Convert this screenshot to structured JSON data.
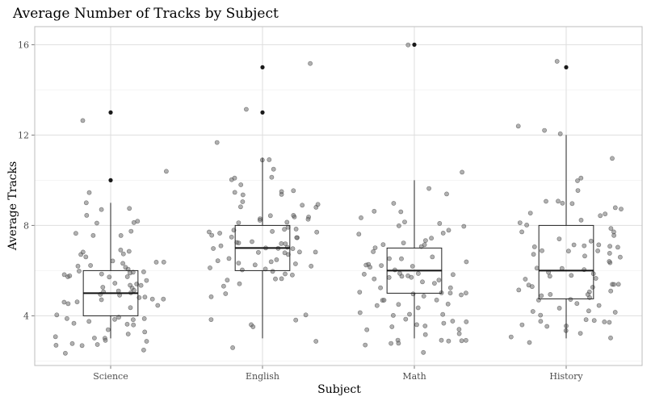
{
  "chart_data": {
    "type": "boxplot",
    "title": "Average Number of Tracks by Subject",
    "xlabel": "Subject",
    "ylabel": "Average Tracks",
    "categories": [
      "Science",
      "English",
      "Math",
      "History"
    ],
    "y_ticks": [
      4,
      8,
      12,
      16
    ],
    "ylim": [
      1.8,
      16.8
    ],
    "grid": true,
    "boxes": [
      {
        "name": "Science",
        "q1": 4,
        "median": 5,
        "q3": 6,
        "whisker_low": 3,
        "whisker_high": 9,
        "outliers": [
          10,
          13
        ]
      },
      {
        "name": "English",
        "q1": 6,
        "median": 7,
        "q3": 8,
        "whisker_low": 3,
        "whisker_high": 11,
        "outliers": [
          13,
          15
        ]
      },
      {
        "name": "Math",
        "q1": 5,
        "median": 6,
        "q3": 7,
        "whisker_low": 3,
        "whisker_high": 10,
        "outliers": [
          16
        ]
      },
      {
        "name": "History",
        "q1": 4.75,
        "median": 6,
        "q3": 8,
        "whisker_low": 3,
        "whisker_high": 12,
        "outliers": [
          15
        ]
      }
    ],
    "jitter_points": [
      {
        "category": "Science",
        "y": [
          6.2,
          5.8,
          4.9,
          3.4,
          7.9,
          8.3,
          2.7,
          5.1,
          6.0,
          4.5,
          3.9,
          5.5,
          6.7,
          4.2,
          5.9,
          3.1,
          2.9,
          8.1,
          6.4,
          5.0,
          4.8,
          5.7,
          3.6,
          4.1,
          7.2,
          5.3,
          6.1,
          2.8,
          4.4,
          5.6,
          12.9,
          9.1,
          8.6,
          8.9,
          3.3,
          5.2,
          6.6,
          4.0,
          3.0,
          7.0,
          5.4,
          4.6,
          6.3,
          2.6,
          5.8,
          4.7,
          8.8,
          10.4,
          7.6,
          5.1,
          3.8,
          4.3,
          6.0,
          2.7,
          9.2,
          6.5,
          5.0,
          3.2,
          4.9,
          5.6,
          7.3,
          4.1,
          6.8,
          3.5,
          5.9,
          2.9,
          8.0,
          5.3,
          4.4,
          6.1,
          3.1,
          2.8,
          5.7,
          4.6,
          6.2,
          4.0,
          3.4,
          5.5,
          7.9,
          6.4,
          2.6,
          4.8,
          5.2,
          3.7,
          6.0
        ]
      },
      {
        "category": "English",
        "y": [
          15.3,
          11.4,
          12.8,
          10.2,
          9.8,
          9.3,
          8.6,
          8.1,
          7.9,
          7.7,
          7.5,
          7.3,
          7.1,
          6.9,
          6.7,
          6.5,
          6.3,
          6.1,
          5.9,
          5.7,
          4.2,
          3.9,
          3.3,
          3.2,
          3.6,
          4.7,
          5.1,
          7.8,
          8.4,
          9.1,
          9.6,
          10.4,
          11.2,
          8.2,
          7.6,
          7.0,
          6.4,
          5.8,
          6.8,
          7.2,
          8.0,
          8.8,
          9.4,
          7.4,
          6.6,
          6.0,
          5.6,
          7.9,
          8.3,
          7.1,
          6.2,
          5.9,
          9.9,
          10.8,
          8.7,
          7.5,
          6.9,
          6.3,
          7.7,
          8.5,
          4.5,
          3.6,
          2.8,
          9.2,
          7.3,
          6.7,
          8.1,
          7.0,
          5.7,
          6.5,
          7.8,
          8.9,
          9.7,
          6.1,
          7.4,
          8.6,
          6.8,
          7.6,
          5.9,
          6.4,
          7.2,
          8.3,
          6.0,
          7.9,
          9.0
        ]
      },
      {
        "category": "Math",
        "y": [
          16.3,
          10.4,
          9.3,
          9.2,
          8.8,
          8.4,
          8.1,
          7.9,
          7.6,
          7.3,
          7.1,
          6.9,
          6.7,
          6.5,
          6.3,
          6.1,
          5.9,
          5.7,
          5.5,
          5.3,
          5.1,
          4.9,
          4.7,
          4.5,
          4.3,
          4.1,
          3.9,
          3.7,
          3.5,
          3.3,
          3.1,
          2.9,
          2.7,
          2.6,
          3.8,
          4.4,
          5.0,
          5.6,
          6.2,
          6.8,
          7.4,
          8.0,
          8.6,
          9.0,
          7.8,
          7.0,
          6.4,
          5.8,
          5.2,
          4.6,
          4.0,
          3.4,
          2.8,
          6.6,
          6.0,
          5.4,
          4.8,
          4.2,
          3.6,
          3.0,
          7.2,
          6.3,
          5.6,
          4.9,
          4.4,
          3.8,
          3.2,
          7.5,
          6.1,
          5.0,
          4.3,
          3.9,
          2.7,
          8.2,
          7.7,
          6.8,
          5.9,
          5.3,
          4.7,
          4.1,
          3.5,
          2.9,
          6.5,
          5.7,
          4.6
        ]
      },
      {
        "category": "History",
        "y": [
          15.0,
          12.2,
          12.1,
          12.0,
          11.1,
          10.2,
          10.1,
          9.3,
          9.2,
          8.7,
          8.5,
          8.2,
          8.0,
          7.8,
          7.6,
          7.4,
          7.2,
          7.0,
          6.8,
          6.6,
          6.4,
          6.2,
          6.0,
          5.8,
          5.6,
          5.4,
          5.2,
          5.0,
          4.8,
          4.6,
          4.4,
          4.2,
          4.0,
          3.8,
          3.6,
          3.4,
          3.2,
          3.0,
          2.8,
          2.7,
          9.0,
          8.4,
          7.9,
          7.3,
          6.9,
          6.3,
          5.9,
          5.3,
          4.9,
          4.3,
          3.9,
          3.3,
          8.8,
          7.7,
          7.1,
          6.5,
          6.1,
          5.5,
          5.1,
          4.5,
          4.1,
          3.7,
          9.6,
          8.1,
          7.5,
          6.7,
          5.7,
          4.7,
          3.5,
          8.6,
          7.0,
          6.0,
          5.0,
          4.0,
          7.9,
          6.6,
          5.6,
          4.4,
          3.8,
          6.4,
          5.4,
          4.6,
          7.4,
          6.2,
          5.2
        ]
      }
    ]
  }
}
